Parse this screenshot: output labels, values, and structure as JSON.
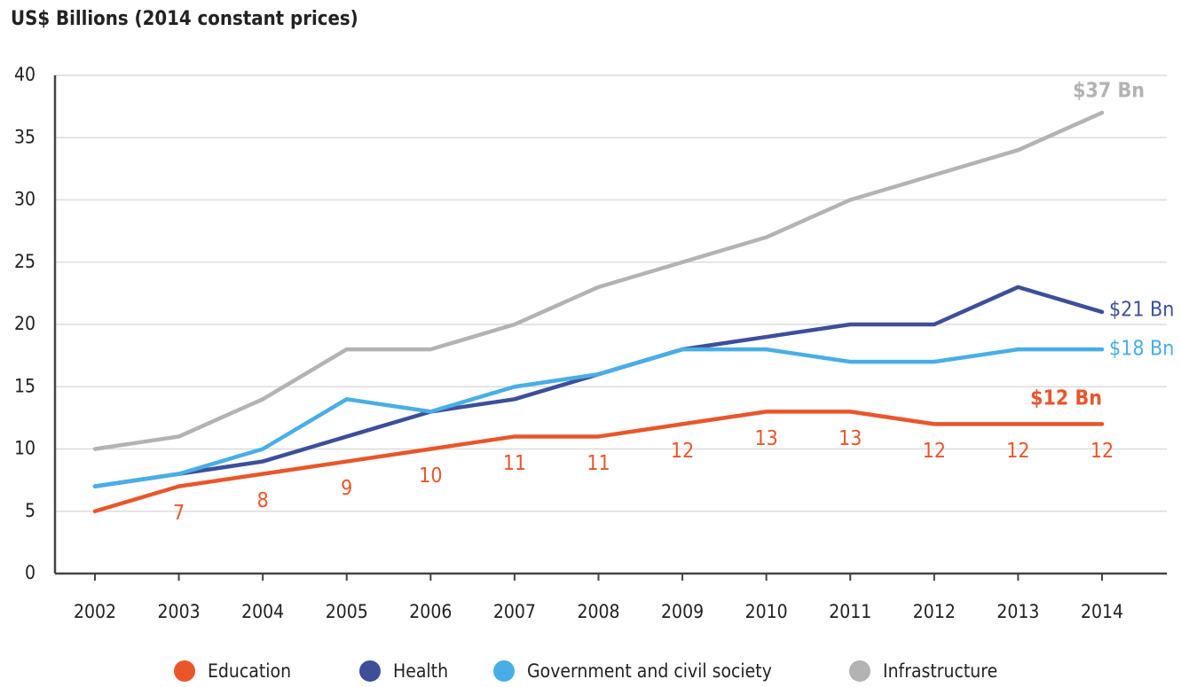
{
  "chart_data": {
    "type": "line",
    "title": "US$ Billions (2014 constant prices)",
    "categories": [
      "2002",
      "2003",
      "2004",
      "2005",
      "2006",
      "2007",
      "2008",
      "2009",
      "2010",
      "2011",
      "2012",
      "2013",
      "2014"
    ],
    "series": [
      {
        "name": "Education",
        "color": "#e8562a",
        "values": [
          5,
          7,
          8,
          9,
          10,
          11,
          11,
          12,
          13,
          13,
          12,
          12,
          12
        ],
        "value_labels": [
          null,
          "7",
          "8",
          "9",
          "10",
          "11",
          "11",
          "12",
          "13",
          "13",
          "12",
          "12",
          "12"
        ],
        "end_label": "$12 Bn"
      },
      {
        "name": "Health",
        "color": "#3d4f9a",
        "values": [
          7,
          8,
          9,
          11,
          13,
          14,
          16,
          18,
          19,
          20,
          20,
          23,
          21
        ],
        "end_label": "$21 Bn"
      },
      {
        "name": "Government and civil society",
        "color": "#48aee6",
        "values": [
          7,
          8,
          10,
          14,
          13,
          15,
          16,
          18,
          18,
          17,
          17,
          18,
          18
        ],
        "end_label": "$18 Bn"
      },
      {
        "name": "Infrastructure",
        "color": "#b3b3b3",
        "values": [
          10,
          11,
          14,
          18,
          18,
          20,
          23,
          25,
          27,
          30,
          32,
          34,
          37
        ],
        "end_label": "$37 Bn"
      }
    ],
    "ylim": [
      0,
      40
    ],
    "yticks": [
      0,
      5,
      10,
      15,
      20,
      25,
      30,
      35,
      40
    ],
    "grid": true
  }
}
